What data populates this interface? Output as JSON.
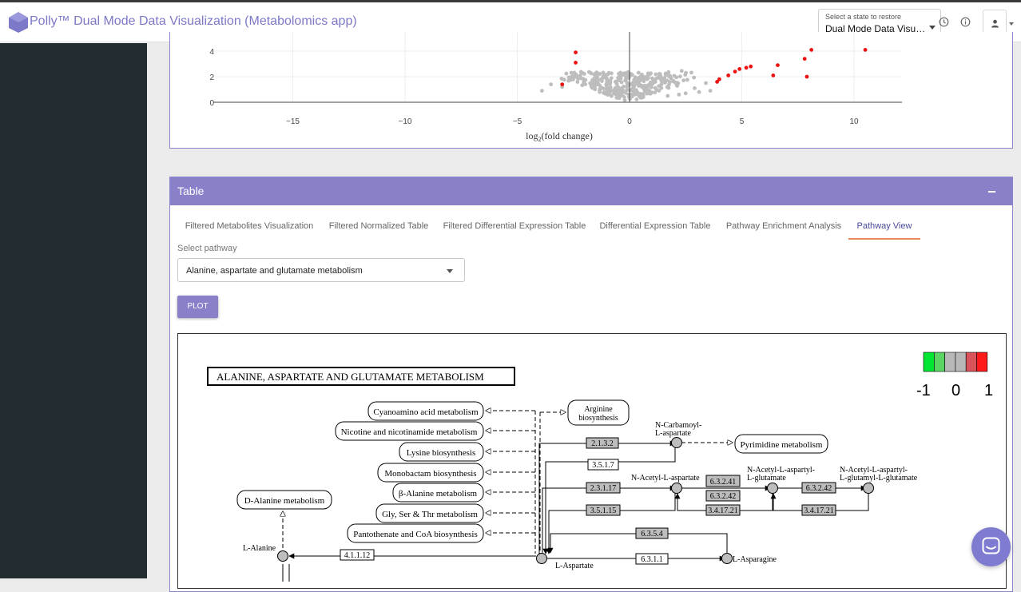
{
  "header": {
    "title": "Polly™ Dual Mode Data Visualization (Metabolomics app)",
    "state_caption": "Select a state to restore",
    "state_value": "Dual Mode Data Visualization"
  },
  "volcano": {
    "xlabel": "log2(fold change)",
    "x_ticks": [
      "−15",
      "−10",
      "−5",
      "0",
      "5",
      "10"
    ],
    "y_ticks": [
      "0",
      "2",
      "4"
    ]
  },
  "table": {
    "title": "Table",
    "tabs": [
      {
        "label": "Filtered Metabolites Visualization"
      },
      {
        "label": "Filtered Normalized Table"
      },
      {
        "label": "Filtered Differential Expression Table"
      },
      {
        "label": "Differential Expression Table"
      },
      {
        "label": "Pathway Enrichment Analysis"
      },
      {
        "label": "Pathway View"
      }
    ],
    "active_tab": "Pathway View",
    "select_label": "Select pathway",
    "pathway_value": "Alanine, aspartate and glutamate metabolism",
    "plot_label": "PLOT"
  },
  "kegg": {
    "title": "ALANINE, ASPARTATE AND GLUTAMATE METABOLISM",
    "legend": {
      "min": "-1",
      "mid": "0",
      "max": "1"
    },
    "legend_colors": [
      "#00e632",
      "#5cd464",
      "#b8b8b8",
      "#b8b8b8",
      "#d8545a",
      "#ff1a1a"
    ],
    "pathways": [
      "Cyanoamino acid metabolism",
      "Nicotine and nicotinamide metabolism",
      "Lysine biosynthesis",
      "Monobactam biosynthesis",
      "β-Alanine metabolism",
      "Gly, Ser & Thr metabolism",
      "Pantothenate and CoA biosynthesis"
    ],
    "arginine": [
      "Arginine",
      "biosynthesis"
    ],
    "d_alanine": "D-Alanine metabolism",
    "pyrimidine": "Pyrimidine metabolism",
    "compounds": {
      "carbamoyl": [
        "N-Carbamoyl-",
        "L-aspartate"
      ],
      "acetyl_asp": "N-Acetyl-L-aspartate",
      "acetyl_glu": [
        "N-Acetyl-L-aspartyl-",
        "L-glutamate"
      ],
      "acetyl_glu2": [
        "N-Acetyl-L-aspartyl-",
        "L-glutamyl-L-glutamate"
      ],
      "l_alanine": "L-Alanine",
      "l_aspartate": "L-Aspartate",
      "l_asparagine": "L-Asparagine"
    },
    "enzymes": {
      "e1": "2.1.3.2",
      "e2": "3.5.1.7",
      "e3": "2.3.1.17",
      "e4": "3.5.1.15",
      "e5": "6.3.2.41",
      "e6": "6.3.2.42",
      "e7": "3.4.17.21",
      "e8": "6.3.2.42",
      "e9": "3.4.17.21",
      "e10": "6.3.5.4",
      "e11": "6.3.1.1",
      "e12": "4.1.1.12"
    }
  }
}
